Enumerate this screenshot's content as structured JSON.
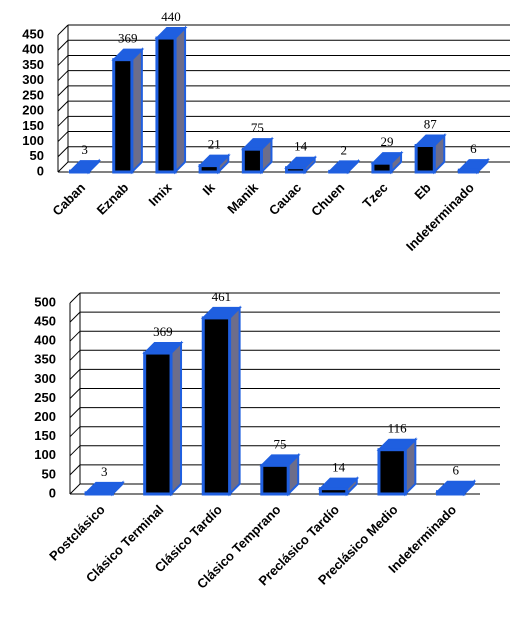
{
  "chart_data": [
    {
      "type": "bar3d",
      "categories": [
        "Caban",
        "Eznab",
        "Imix",
        "Ik",
        "Manik",
        "Cauac",
        "Chuen",
        "Tzec",
        "Eb",
        "Indeterminado"
      ],
      "values": [
        3,
        369,
        440,
        21,
        75,
        14,
        2,
        29,
        87,
        6
      ],
      "color": "#1f5fe0",
      "ylim": [
        0,
        450
      ],
      "yticks": [
        0,
        50,
        100,
        150,
        200,
        250,
        300,
        350,
        400,
        450
      ],
      "grid": true
    },
    {
      "type": "bar3d",
      "categories": [
        "Postclásico",
        "Clásico Terminal",
        "Clásico Tardío",
        "Clásico Temprano",
        "Preclásico Tardío",
        "Preclásico Medio",
        "Indeterminado"
      ],
      "values": [
        3,
        369,
        461,
        75,
        14,
        116,
        6
      ],
      "color": "#1f5fe0",
      "ylim": [
        0,
        500
      ],
      "yticks": [
        0,
        50,
        100,
        150,
        200,
        250,
        300,
        350,
        400,
        450,
        500
      ],
      "grid": true
    }
  ]
}
